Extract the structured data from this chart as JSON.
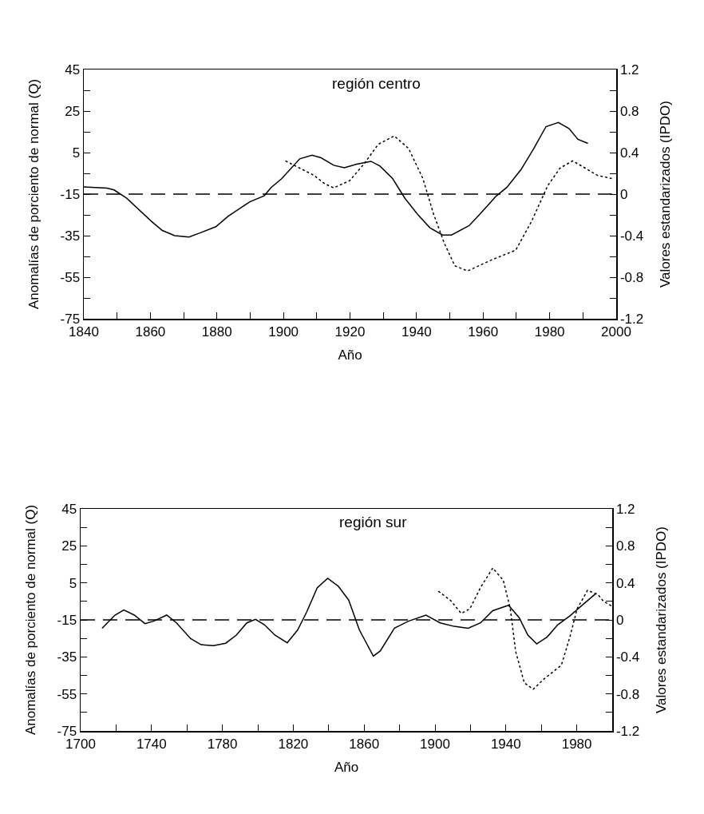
{
  "chart_data": [
    {
      "type": "line",
      "title": "región centro",
      "xlabel": "Año",
      "ylabel": "Anomalías de porciento de normal (Q)",
      "y2label": "Valores estandarizados (IPDO)",
      "xlim": [
        1840,
        2000
      ],
      "xticks": [
        1840,
        {
          "value": 1850,
          "label": null
        },
        1860,
        {
          "value": 1870,
          "label": null
        },
        1880,
        {
          "value": 1890,
          "label": null
        },
        1900,
        {
          "value": 1910,
          "label": null
        },
        1920,
        {
          "value": 1930,
          "label": null
        },
        1940,
        {
          "value": 1950,
          "label": null
        },
        1960,
        {
          "value": 1970,
          "label": null
        },
        1980,
        {
          "value": 1990,
          "label": null
        },
        2000
      ],
      "ylim": [
        -75,
        45
      ],
      "yticks": [
        -75,
        {
          "value": -65,
          "label": null
        },
        -55,
        {
          "value": -45,
          "label": null
        },
        -35,
        {
          "value": -25,
          "label": null
        },
        -15,
        {
          "value": -5,
          "label": null
        },
        5,
        {
          "value": 15,
          "label": null
        },
        25,
        {
          "value": 35,
          "label": null
        },
        45
      ],
      "y2lim": [
        -1.2,
        1.2
      ],
      "y2ticks": [
        -1.2,
        {
          "value": -1.0,
          "label": null
        },
        -0.8,
        {
          "value": -0.6,
          "label": null
        },
        -0.4,
        {
          "value": -0.2,
          "label": null
        },
        0,
        {
          "value": 0.2,
          "label": null
        },
        0.4,
        {
          "value": 0.6,
          "label": null
        },
        0.8,
        {
          "value": 1.0,
          "label": null
        },
        1.2
      ],
      "ref_lines": [
        {
          "axis": "y",
          "value": -15,
          "line_style": "dashed",
          "color": "#000000"
        }
      ],
      "series": [
        {
          "color": "#000000",
          "line_style": "solid",
          "x": [
            1840,
            1847,
            1849.1,
            1852.9,
            1860.4,
            1863.6,
            1867.3,
            1871.6,
            1874.9,
            1879.7,
            1883.4,
            1889.9,
            1894.2,
            1896.3,
            1899.5,
            1904.9,
            1908.6,
            1911.3,
            1915.1,
            1918.3,
            1922,
            1926.3,
            1929,
            1932.8,
            1936.5,
            1940.3,
            1944,
            1947.8,
            1950.5,
            1955.8,
            1959,
            1963.9,
            1967.1,
            1971.4,
            1975.1,
            1978.9,
            1982.6,
            1985.8,
            1988.5,
            1991.5
          ],
          "values": [
            -11.5,
            -12.1,
            -13,
            -17,
            -28.2,
            -32.5,
            -35,
            -35.7,
            -33.7,
            -30.7,
            -25.6,
            -18.7,
            -15.8,
            -11.8,
            -7.5,
            2,
            3.7,
            2.5,
            -1.1,
            -2.3,
            -0.6,
            0.8,
            -1.5,
            -7.5,
            -17,
            -24.7,
            -31.2,
            -34.7,
            -34.7,
            -30.2,
            -24.7,
            -16,
            -11.8,
            -3.2,
            6.6,
            17.5,
            19.5,
            16.6,
            11.4,
            9.4
          ]
        },
        {
          "color": "#000000",
          "line_style": "dotted",
          "axis": "y2",
          "x": [
            1900.6,
            1904.9,
            1909.2,
            1912.4,
            1915.1,
            1919.9,
            1924.2,
            1928.5,
            1933.3,
            1937.6,
            1941.9,
            1945.1,
            1948.3,
            1951.5,
            1955.3,
            1962.8,
            1969.8,
            1974.6,
            1979.4,
            1983.1,
            1986.9,
            1990.7,
            1994.4,
            1998.7
          ],
          "values": [
            0.32,
            0.25,
            0.18,
            0.1,
            0.06,
            0.13,
            0.29,
            0.48,
            0.56,
            0.44,
            0.15,
            -0.19,
            -0.47,
            -0.69,
            -0.74,
            -0.63,
            -0.54,
            -0.26,
            0.08,
            0.25,
            0.32,
            0.25,
            0.18,
            0.15
          ]
        }
      ]
    },
    {
      "type": "line",
      "title": "región sur",
      "xlabel": "Año",
      "ylabel": "Anomalías de porciento de normal (Q)",
      "y2label": "Valores estandarizados (IPDO)",
      "xlim": [
        1700,
        2000
      ],
      "xticks": [
        1700,
        {
          "value": 1720,
          "label": null
        },
        1740,
        {
          "value": 1760,
          "label": null
        },
        1780,
        {
          "value": 1800,
          "label": null
        },
        1820,
        {
          "value": 1840,
          "label": null
        },
        1860,
        {
          "value": 1880,
          "label": null
        },
        1900,
        {
          "value": 1920,
          "label": null
        },
        1940,
        {
          "value": 1960,
          "label": null
        },
        1980,
        {
          "value": 2000,
          "label": null
        }
      ],
      "ylim": [
        -75,
        45
      ],
      "yticks": [
        -75,
        {
          "value": -65,
          "label": null
        },
        -55,
        {
          "value": -45,
          "label": null
        },
        -35,
        {
          "value": -25,
          "label": null
        },
        -15,
        {
          "value": -5,
          "label": null
        },
        5,
        {
          "value": 15,
          "label": null
        },
        25,
        {
          "value": 35,
          "label": null
        },
        45
      ],
      "y2lim": [
        -1.2,
        1.2
      ],
      "y2ticks": [
        -1.2,
        {
          "value": -1.0,
          "label": null
        },
        -0.8,
        {
          "value": -0.6,
          "label": null
        },
        -0.4,
        {
          "value": -0.2,
          "label": null
        },
        0,
        {
          "value": 0.2,
          "label": null
        },
        0.4,
        {
          "value": 0.6,
          "label": null
        },
        0.8,
        {
          "value": 1.0,
          "label": null
        },
        1.2
      ],
      "ref_lines": [
        {
          "axis": "y",
          "value": -15,
          "line_style": "dashed",
          "color": "#000000"
        }
      ],
      "series": [
        {
          "color": "#000000",
          "line_style": "solid",
          "x": [
            1712.1,
            1719.4,
            1724.4,
            1730.3,
            1736.3,
            1741.2,
            1748.6,
            1754.1,
            1762.1,
            1768,
            1775,
            1781.9,
            1787.9,
            1793.8,
            1798.7,
            1803.7,
            1809.6,
            1816.6,
            1822.5,
            1827.5,
            1833.5,
            1839.4,
            1845.3,
            1851.3,
            1857.3,
            1865.2,
            1869.1,
            1877.1,
            1885,
            1894.9,
            1902.9,
            1910.8,
            1918.7,
            1925.7,
            1932.6,
            1941.5,
            1947.5,
            1952.4,
            1957.4,
            1963.3,
            1969.3,
            1976.2,
            1984.1,
            1991.1
          ],
          "values": [
            -19.5,
            -12.4,
            -9.6,
            -12.4,
            -17,
            -15.7,
            -12.4,
            -16.6,
            -25.1,
            -28.4,
            -28.9,
            -27.6,
            -23.2,
            -16.6,
            -14.7,
            -17.6,
            -23.2,
            -27.4,
            -20.4,
            -10.9,
            2.3,
            7.5,
            3.3,
            -4.3,
            -20.4,
            -34.6,
            -31.8,
            -19.5,
            -15.7,
            -12.4,
            -16.6,
            -18.5,
            -19.5,
            -16.6,
            -10,
            -7.1,
            -13.8,
            -23.2,
            -28,
            -24.2,
            -17.6,
            -12.8,
            -6.2,
            -0.5
          ]
        },
        {
          "color": "#000000",
          "line_style": "dotted",
          "axis": "y2",
          "x": [
            1901.9,
            1908.8,
            1914.8,
            1919.7,
            1925.7,
            1932.6,
            1938.5,
            1942.5,
            1945.5,
            1950.4,
            1955.4,
            1961.4,
            1971.3,
            1976.2,
            1980.2,
            1986.1,
            1992.1,
            1995.1,
            1999.6
          ],
          "values": [
            0.31,
            0.21,
            0.07,
            0.12,
            0.35,
            0.56,
            0.43,
            0.12,
            -0.34,
            -0.68,
            -0.75,
            -0.64,
            -0.49,
            -0.18,
            0.12,
            0.32,
            0.27,
            0.2,
            0.15
          ]
        }
      ]
    }
  ]
}
